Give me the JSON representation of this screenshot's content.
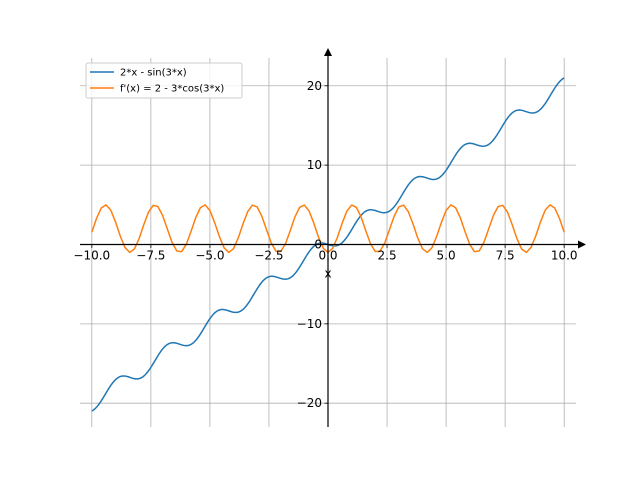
{
  "chart_data": {
    "type": "line",
    "xlabel": "x",
    "ylabel": "",
    "xlim": [
      -10.5,
      10.5
    ],
    "ylim": [
      -23,
      23.5
    ],
    "grid": true,
    "legend_position": "top-left",
    "x_ticks": [
      -10.0,
      -7.5,
      -5.0,
      -2.5,
      0.0,
      2.5,
      5.0,
      7.5,
      10.0
    ],
    "x_tick_labels": [
      "−10.0",
      "−7.5",
      "−5.0",
      "−2.5",
      "0.0",
      "2.5",
      "5.0",
      "7.5",
      "10.0"
    ],
    "y_ticks": [
      -20,
      -10,
      0,
      10,
      20
    ],
    "y_tick_labels": [
      "−20",
      "−10",
      "0",
      "10",
      "20"
    ],
    "x_range": [
      -10,
      10
    ],
    "series": [
      {
        "name": "2*x - sin(3*x)",
        "expression": "2*x - sin(3*x)",
        "color": "#1f77b4"
      },
      {
        "name": "f'(x) = 2 - 3*cos(3*x)",
        "expression": "2 - 3*cos(3*x)",
        "color": "#ff7f0e"
      }
    ]
  }
}
